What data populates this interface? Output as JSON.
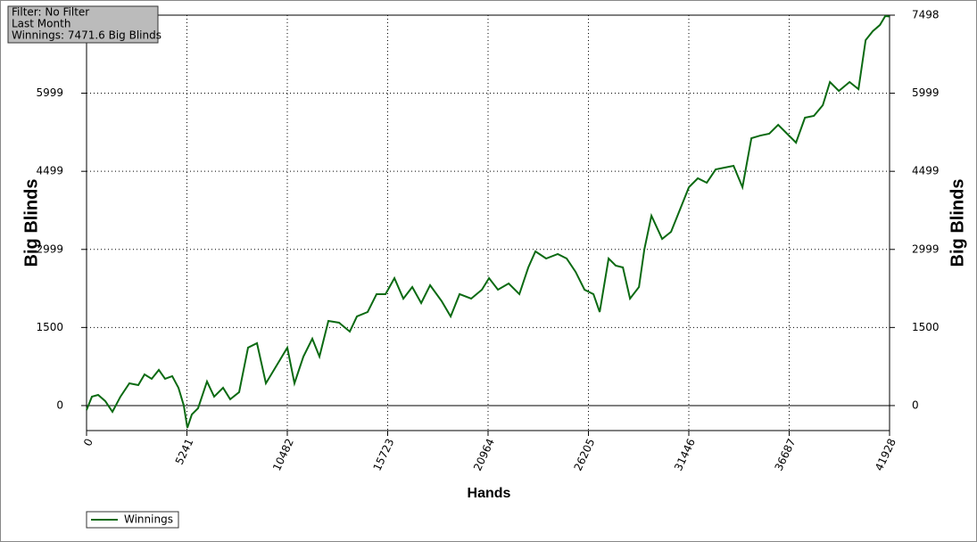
{
  "chart_data": {
    "type": "line",
    "annotations": [
      "Filter: No Filter",
      "Last Month",
      "Winnings: 7471.6 Big Blinds"
    ],
    "x_label": "Hands",
    "y_label": "Big Blinds",
    "x": [
      0,
      280,
      606,
      978,
      1351,
      1770,
      2236,
      2702,
      3028,
      3401,
      3774,
      4100,
      4473,
      4799,
      5078,
      5264,
      5497,
      5823,
      6289,
      6662,
      7128,
      7501,
      7967,
      8433,
      8899,
      9365,
      9924,
      10483,
      10856,
      11322,
      11788,
      12161,
      12627,
      13186,
      13745,
      14118,
      14677,
      15143,
      15609,
      16075,
      16541,
      17007,
      17473,
      17939,
      18545,
      19011,
      19477,
      20083,
      20642,
      21015,
      21481,
      22040,
      22599,
      23065,
      23438,
      23997,
      24603,
      25069,
      25535,
      26001,
      26467,
      26793,
      27259,
      27632,
      28005,
      28377,
      28843,
      29123,
      29495,
      30054,
      30520,
      30986,
      31452,
      31918,
      32384,
      32850,
      33316,
      33782,
      34248,
      34714,
      35180,
      35646,
      36112,
      36578,
      37044,
      37510,
      37976,
      38442,
      38815,
      39281,
      39840,
      40306,
      40679,
      41052,
      41425,
      41704,
      41928
    ],
    "series": [
      {
        "name": "Winnings",
        "color": "#0b6a12",
        "values": [
          -86,
          171,
          205,
          86,
          -120,
          171,
          428,
          394,
          599,
          514,
          685,
          514,
          565,
          342,
          0,
          -428,
          -171,
          -51,
          462,
          171,
          342,
          120,
          257,
          1113,
          1198,
          428,
          770,
          1113,
          428,
          941,
          1284,
          941,
          1626,
          1592,
          1421,
          1712,
          1797,
          2140,
          2140,
          2448,
          2054,
          2277,
          1969,
          2311,
          2003,
          1712,
          2140,
          2054,
          2225,
          2448,
          2225,
          2345,
          2140,
          2653,
          2961,
          2824,
          2910,
          2824,
          2568,
          2225,
          2140,
          1797,
          2824,
          2687,
          2653,
          2054,
          2277,
          2996,
          3646,
          3201,
          3338,
          3766,
          4194,
          4365,
          4280,
          4536,
          4570,
          4605,
          4194,
          5135,
          5186,
          5221,
          5392,
          5221,
          5050,
          5529,
          5563,
          5769,
          6214,
          6043,
          6214,
          6077,
          7018,
          7190,
          7309,
          7481,
          7472
        ]
      }
    ],
    "xlim": [
      0,
      41928
    ],
    "xticks": [
      0,
      5241,
      10482,
      15723,
      20964,
      26205,
      31446,
      36687,
      41928
    ],
    "ylim": [
      -480,
      7498
    ],
    "yticks": [
      0,
      1500,
      2999,
      4499,
      5999,
      7498
    ],
    "grid": true
  }
}
